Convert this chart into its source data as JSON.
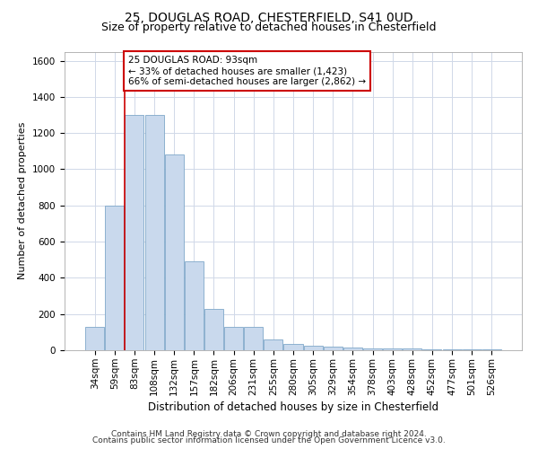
{
  "title1": "25, DOUGLAS ROAD, CHESTERFIELD, S41 0UD",
  "title2": "Size of property relative to detached houses in Chesterfield",
  "xlabel": "Distribution of detached houses by size in Chesterfield",
  "ylabel": "Number of detached properties",
  "categories": [
    "34sqm",
    "59sqm",
    "83sqm",
    "108sqm",
    "132sqm",
    "157sqm",
    "182sqm",
    "206sqm",
    "231sqm",
    "255sqm",
    "280sqm",
    "305sqm",
    "329sqm",
    "354sqm",
    "378sqm",
    "403sqm",
    "428sqm",
    "452sqm",
    "477sqm",
    "501sqm",
    "526sqm"
  ],
  "values": [
    130,
    800,
    1300,
    1300,
    1080,
    490,
    230,
    130,
    130,
    60,
    35,
    25,
    18,
    15,
    12,
    8,
    8,
    5,
    5,
    5,
    5
  ],
  "bar_color": "#c9d9ed",
  "bar_edge_color": "#7fa8c9",
  "vline_x_index": 2,
  "vline_color": "#cc0000",
  "annotation_text": "25 DOUGLAS ROAD: 93sqm\n← 33% of detached houses are smaller (1,423)\n66% of semi-detached houses are larger (2,862) →",
  "annotation_box_color": "#ffffff",
  "annotation_box_edge": "#cc0000",
  "ylim": [
    0,
    1650
  ],
  "yticks": [
    0,
    200,
    400,
    600,
    800,
    1000,
    1200,
    1400,
    1600
  ],
  "grid_color": "#d0d8e8",
  "footer1": "Contains HM Land Registry data © Crown copyright and database right 2024.",
  "footer2": "Contains public sector information licensed under the Open Government Licence v3.0.",
  "title1_fontsize": 10,
  "title2_fontsize": 9,
  "xlabel_fontsize": 8.5,
  "ylabel_fontsize": 8,
  "tick_fontsize": 7.5,
  "annotation_fontsize": 7.5,
  "footer_fontsize": 6.5
}
